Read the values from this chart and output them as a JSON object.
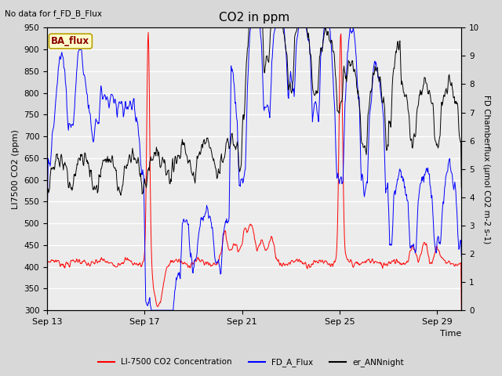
{
  "title": "CO2 in ppm",
  "top_left_text": "No data for f_FD_B_Flux",
  "xlabel": "Time",
  "ylabel_left": "LI7500 CO2 (ppm)",
  "ylabel_right": "FD Chamberflux (μmol CO2 m-2 s-1)",
  "ylim_left": [
    300,
    950
  ],
  "ylim_right": [
    0.0,
    10.0
  ],
  "yticks_left": [
    300,
    350,
    400,
    450,
    500,
    550,
    600,
    650,
    700,
    750,
    800,
    850,
    900,
    950
  ],
  "yticks_right": [
    0.0,
    1.0,
    2.0,
    3.0,
    4.0,
    5.0,
    6.0,
    7.0,
    8.0,
    9.0,
    10.0
  ],
  "xtick_labels": [
    "Sep 13",
    "Sep 17",
    "Sep 21",
    "Sep 25",
    "Sep 29"
  ],
  "xtick_positions": [
    0,
    4,
    8,
    12,
    16
  ],
  "bg_color": "#d8d8d8",
  "plot_bg_color": "#ececec",
  "legend_items": [
    {
      "label": "LI-7500 CO2 Concentration",
      "color": "red"
    },
    {
      "label": "FD_A_Flux",
      "color": "blue"
    },
    {
      "label": "er_ANNnight",
      "color": "black"
    }
  ],
  "ba_flux_label": "BA_flux",
  "ba_flux_box_facecolor": "#ffffcc",
  "ba_flux_box_edgecolor": "#b8a000",
  "ba_flux_text_color": "#8b0000"
}
